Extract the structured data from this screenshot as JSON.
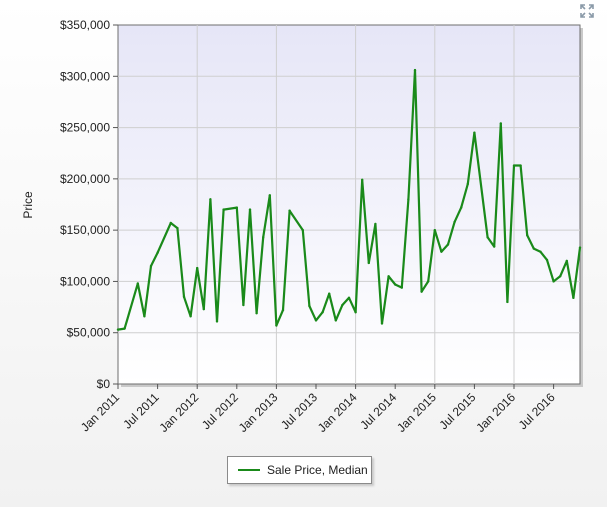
{
  "chart_data": {
    "type": "line",
    "title": "",
    "xlabel": "",
    "ylabel": "Price",
    "ylim": [
      0,
      350000
    ],
    "y_tick_values": [
      0,
      50000,
      100000,
      150000,
      200000,
      250000,
      300000,
      350000
    ],
    "y_tick_labels": [
      "$0",
      "$50,000",
      "$100,000",
      "$150,000",
      "$200,000",
      "$250,000",
      "$300,000",
      "$350,000"
    ],
    "x_tick_labels": [
      "Jan 2011",
      "Jul 2011",
      "Jan 2012",
      "Jul 2012",
      "Jan 2013",
      "Jul 2013",
      "Jan 2014",
      "Jul 2014",
      "Jan 2015",
      "Jul 2015",
      "Jan 2016",
      "Jul 2016"
    ],
    "grid": true,
    "legend_position": "bottom-center",
    "line_color": "#1a8a1a",
    "series": [
      {
        "name": "Sale Price, Median",
        "points": [
          [
            "Jan 2011",
            53000
          ],
          [
            "Feb 2011",
            54000
          ],
          [
            "Apr 2011",
            98000
          ],
          [
            "May 2011",
            66000
          ],
          [
            "Jun 2011",
            115000
          ],
          [
            "Jul 2011",
            128000
          ],
          [
            "Sep 2011",
            157000
          ],
          [
            "Oct 2011",
            152000
          ],
          [
            "Nov 2011",
            85000
          ],
          [
            "Dec 2011",
            66000
          ],
          [
            "Jan 2012",
            113000
          ],
          [
            "Feb 2012",
            73000
          ],
          [
            "Mar 2012",
            180000
          ],
          [
            "Apr 2012",
            61000
          ],
          [
            "May 2012",
            170000
          ],
          [
            "Jul 2012",
            172000
          ],
          [
            "Aug 2012",
            77000
          ],
          [
            "Sep 2012",
            170000
          ],
          [
            "Oct 2012",
            69000
          ],
          [
            "Nov 2012",
            143000
          ],
          [
            "Dec 2012",
            184000
          ],
          [
            "Jan 2013",
            57000
          ],
          [
            "Feb 2013",
            72000
          ],
          [
            "Mar 2013",
            169000
          ],
          [
            "May 2013",
            150000
          ],
          [
            "Jun 2013",
            76000
          ],
          [
            "Jul 2013",
            62000
          ],
          [
            "Aug 2013",
            70000
          ],
          [
            "Sep 2013",
            88000
          ],
          [
            "Oct 2013",
            62000
          ],
          [
            "Nov 2013",
            77000
          ],
          [
            "Dec 2013",
            84000
          ],
          [
            "Jan 2014",
            70000
          ],
          [
            "Feb 2014",
            199000
          ],
          [
            "Mar 2014",
            118000
          ],
          [
            "Apr 2014",
            156000
          ],
          [
            "May 2014",
            59000
          ],
          [
            "Jun 2014",
            105000
          ],
          [
            "Jul 2014",
            97000
          ],
          [
            "Aug 2014",
            94000
          ],
          [
            "Sep 2014",
            180000
          ],
          [
            "Oct 2014",
            306000
          ],
          [
            "Nov 2014",
            90000
          ],
          [
            "Dec 2014",
            100000
          ],
          [
            "Jan 2015",
            150000
          ],
          [
            "Feb 2015",
            129000
          ],
          [
            "Mar 2015",
            136000
          ],
          [
            "Apr 2015",
            158000
          ],
          [
            "May 2015",
            172000
          ],
          [
            "Jun 2015",
            195000
          ],
          [
            "Jul 2015",
            245000
          ],
          [
            "Sep 2015",
            143000
          ],
          [
            "Oct 2015",
            134000
          ],
          [
            "Nov 2015",
            254000
          ],
          [
            "Dec 2015",
            80000
          ],
          [
            "Jan 2016",
            213000
          ],
          [
            "Feb 2016",
            213000
          ],
          [
            "Mar 2016",
            145000
          ],
          [
            "Apr 2016",
            132000
          ],
          [
            "May 2016",
            129000
          ],
          [
            "Jun 2016",
            121000
          ],
          [
            "Jul 2016",
            100000
          ],
          [
            "Aug 2016",
            105000
          ],
          [
            "Sep 2016",
            120000
          ],
          [
            "Oct 2016",
            84000
          ],
          [
            "Nov 2016",
            133000
          ]
        ]
      }
    ]
  },
  "legend": {
    "label": "Sale Price, Median"
  },
  "toolbar": {
    "expand_icon": "expand-arrows-icon"
  }
}
